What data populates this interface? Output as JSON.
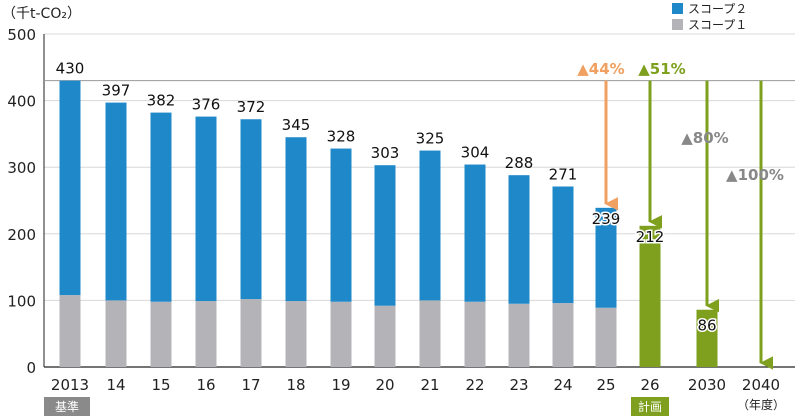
{
  "chart_data": {
    "type": "bar",
    "unit_label": "（千t-CO₂）",
    "ylim": [
      0,
      500
    ],
    "yticks": [
      0,
      100,
      200,
      300,
      400,
      500
    ],
    "grid": "horizontal",
    "legend_position": "top-right",
    "categories": [
      "2013",
      "14",
      "15",
      "16",
      "17",
      "18",
      "19",
      "20",
      "21",
      "22",
      "23",
      "24",
      "25",
      "26",
      "2030",
      "2040"
    ],
    "totals": [
      430,
      397,
      382,
      376,
      372,
      345,
      328,
      303,
      325,
      304,
      288,
      271,
      239,
      212,
      86,
      0
    ],
    "total_labels": [
      "430",
      "397",
      "382",
      "376",
      "372",
      "345",
      "328",
      "303",
      "325",
      "304",
      "288",
      "271",
      "239",
      "212",
      "86",
      ""
    ],
    "series": [
      {
        "name": "スコープ２",
        "values": [
          322,
          297,
          284,
          277,
          270,
          246,
          230,
          211,
          225,
          206,
          193,
          175,
          150,
          null,
          null,
          null
        ]
      },
      {
        "name": "スコープ１",
        "values": [
          108,
          100,
          98,
          99,
          102,
          99,
          98,
          92,
          100,
          98,
          95,
          96,
          89,
          null,
          null,
          null
        ]
      }
    ],
    "target_bars": [
      {
        "category": "26",
        "value": 212
      },
      {
        "category": "2030",
        "value": 86
      }
    ],
    "baseline_value": 430,
    "reduction_arrows": [
      {
        "category": "25",
        "from": 430,
        "to": 239,
        "label": "▲44%",
        "style": "orange"
      },
      {
        "category": "26",
        "from": 430,
        "to": 212,
        "label": "▲51%",
        "style": "green"
      },
      {
        "category": "2030",
        "from": 430,
        "to": 86,
        "label": "▲80%",
        "style": "gray-label"
      },
      {
        "category": "2040",
        "from": 430,
        "to": 0,
        "label": "▲100%",
        "style": "gray-label"
      }
    ],
    "badges": [
      {
        "category": "2013",
        "text": "基準"
      },
      {
        "category": "26",
        "text": "計画"
      }
    ],
    "year_unit_label": "（年度）"
  },
  "colors": {
    "scope2": "#1e88c9",
    "scope1": "#b4b4b8",
    "target": "#7ea01e",
    "orange_arrow": "#f0a060",
    "grid": "#d8d8d8",
    "axis_text": "#222222",
    "label_gray": "#888888",
    "badge_gray": "#8a8a8a"
  }
}
